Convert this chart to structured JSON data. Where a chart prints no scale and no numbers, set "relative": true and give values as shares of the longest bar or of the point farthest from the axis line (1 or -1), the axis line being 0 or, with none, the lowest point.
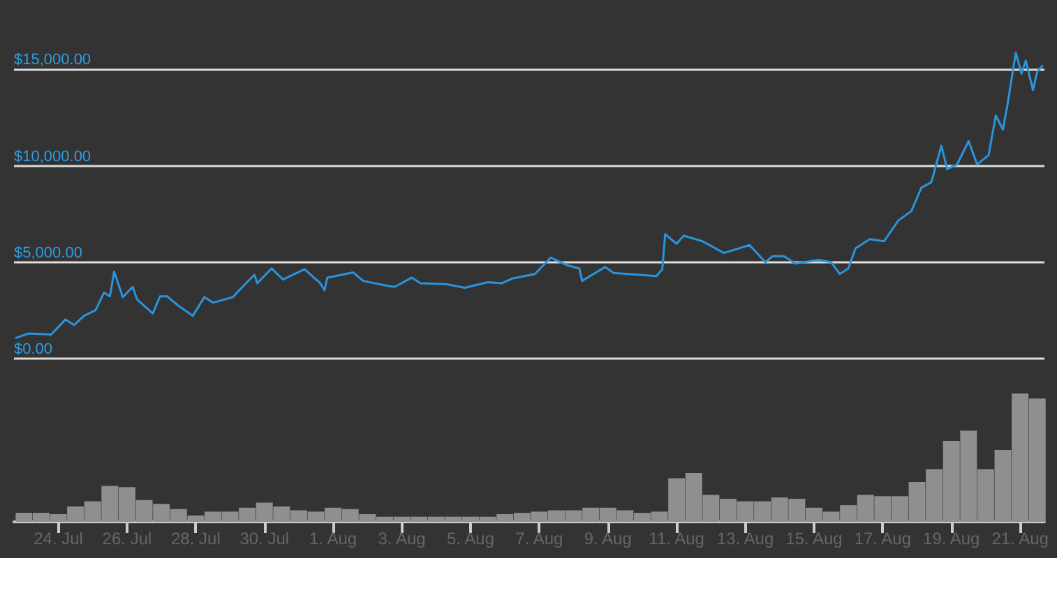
{
  "chart_data": [
    {
      "type": "line",
      "x": [
        "--07-22T18:00",
        "--07-23T03:00",
        "--07-23T19:00",
        "--07-24T05:00",
        "--07-24T11:00",
        "--07-24T18:00",
        "--07-25T02:00",
        "--07-25T08:00",
        "--07-25T12:00",
        "--07-25T15:00",
        "--07-25T21:00",
        "--07-26T04:00",
        "--07-26T07:00",
        "--07-26T18:00",
        "--07-26T23:00",
        "--07-27T04:00",
        "--07-27T12:00",
        "--07-27T22:00",
        "--07-28T06:00",
        "--07-28T12:00",
        "--07-29T02:00",
        "--07-29T08:00",
        "--07-29T17:00",
        "--07-29T19:00",
        "--07-30T05:00",
        "--07-30T13:00",
        "--07-31T04:00",
        "--07-31T15:00",
        "--07-31T18:00",
        "--07-31T20:00",
        "--08-01T14:00",
        "--08-01T21:00",
        "--08-02T13:00",
        "--08-02T19:00",
        "--08-03T07:00",
        "--08-03T13:00",
        "--08-04T07:00",
        "--08-04T20:00",
        "--08-05T12:00",
        "--08-05T22:00",
        "--08-06T05:00",
        "--08-06T21:00",
        "--08-07T08:00",
        "--08-07T20:00",
        "--08-08T04:00",
        "--08-08T06:00",
        "--08-08T22:00",
        "--08-09T04:00",
        "--08-09T21:00",
        "--08-10T10:00",
        "--08-10T14:00",
        "--08-10T16:00",
        "--08-11T00:00",
        "--08-11T05:00",
        "--08-11T18:00",
        "--08-12T09:00",
        "--08-13T03:00",
        "--08-13T14:00",
        "--08-13T19:00",
        "--08-14T03:00",
        "--08-14T11:00",
        "--08-15T03:00",
        "--08-15T12:00",
        "--08-15T18:00",
        "--08-16T00:00",
        "--08-16T05:00",
        "--08-16T15:00",
        "--08-17T01:00",
        "--08-17T11:00",
        "--08-17T20:00",
        "--08-18T03:00",
        "--08-18T10:00",
        "--08-18T17:00",
        "--08-18T21:00",
        "--08-19T04:00",
        "--08-19T12:00",
        "--08-19T18:00",
        "--08-20T02:00",
        "--08-20T07:00",
        "--08-20T12:00",
        "--08-20T15:00",
        "--08-20T21:00",
        "--08-21T01:00",
        "--08-21T04:00",
        "--08-21T09:00",
        "--08-21T12:00",
        "--08-21T16:00"
      ],
      "series": [
        {
          "color": "#2a93dc",
          "values": [
            1060,
            1300,
            1250,
            2030,
            1740,
            2220,
            2510,
            3430,
            3230,
            4510,
            3190,
            3720,
            3070,
            2340,
            3230,
            3230,
            2740,
            2220,
            3190,
            2900,
            3190,
            3670,
            4350,
            3910,
            4680,
            4100,
            4640,
            3910,
            3550,
            4200,
            4470,
            4030,
            3790,
            3720,
            4200,
            3910,
            3860,
            3670,
            3960,
            3910,
            4150,
            4390,
            5240,
            4830,
            4680,
            4030,
            4750,
            4440,
            4350,
            4280,
            4640,
            6450,
            5960,
            6380,
            6090,
            5480,
            5890,
            5000,
            5310,
            5310,
            4930,
            5120,
            5000,
            4390,
            4680,
            5720,
            6200,
            6090,
            7170,
            7650,
            8860,
            9150,
            11040,
            9830,
            10070,
            11280,
            10070,
            10550,
            12610,
            11880,
            13090,
            15870,
            14780,
            15460,
            13930,
            14900,
            15220
          ]
        }
      ],
      "xlim": [
        "--07-22T17:00",
        "--08-21T17:00"
      ],
      "ylim": [
        0,
        18600
      ],
      "yticks": [
        {
          "value": 0,
          "label": "$0.00"
        },
        {
          "value": 5000,
          "label": "$5,000.00"
        },
        {
          "value": 10000,
          "label": "$10,000.00"
        },
        {
          "value": 15000,
          "label": "$15,000.00"
        }
      ],
      "grid": "y",
      "marker": "none",
      "tick_labels": "y"
    },
    {
      "type": "bar",
      "relative": true,
      "x": [
        "--07-23T00:00",
        "--07-23T12:00",
        "--07-24T00:00",
        "--07-24T12:00",
        "--07-25T00:00",
        "--07-25T12:00",
        "--07-26T00:00",
        "--07-26T12:00",
        "--07-27T00:00",
        "--07-27T12:00",
        "--07-28T00:00",
        "--07-28T12:00",
        "--07-29T00:00",
        "--07-29T12:00",
        "--07-30T00:00",
        "--07-30T12:00",
        "--07-31T00:00",
        "--07-31T12:00",
        "--08-01T00:00",
        "--08-01T12:00",
        "--08-02T00:00",
        "--08-02T12:00",
        "--08-03T00:00",
        "--08-03T12:00",
        "--08-04T00:00",
        "--08-04T12:00",
        "--08-05T00:00",
        "--08-05T12:00",
        "--08-06T00:00",
        "--08-06T12:00",
        "--08-07T00:00",
        "--08-07T12:00",
        "--08-08T00:00",
        "--08-08T12:00",
        "--08-09T00:00",
        "--08-09T12:00",
        "--08-10T00:00",
        "--08-10T12:00",
        "--08-11T00:00",
        "--08-11T12:00",
        "--08-12T00:00",
        "--08-12T12:00",
        "--08-13T00:00",
        "--08-13T12:00",
        "--08-14T00:00",
        "--08-14T12:00",
        "--08-15T00:00",
        "--08-15T12:00",
        "--08-16T00:00",
        "--08-16T12:00",
        "--08-17T00:00",
        "--08-17T12:00",
        "--08-18T00:00",
        "--08-18T12:00",
        "--08-19T00:00",
        "--08-19T12:00",
        "--08-20T00:00",
        "--08-20T12:00",
        "--08-21T00:00",
        "--08-21T12:00"
      ],
      "series": [
        {
          "color": "#8f8f8f",
          "values": [
            0.07,
            0.07,
            0.06,
            0.12,
            0.16,
            0.28,
            0.27,
            0.17,
            0.14,
            0.1,
            0.05,
            0.08,
            0.08,
            0.11,
            0.15,
            0.12,
            0.09,
            0.08,
            0.11,
            0.1,
            0.06,
            0.04,
            0.04,
            0.04,
            0.04,
            0.04,
            0.04,
            0.04,
            0.06,
            0.07,
            0.08,
            0.09,
            0.09,
            0.11,
            0.11,
            0.09,
            0.07,
            0.08,
            0.34,
            0.38,
            0.21,
            0.18,
            0.16,
            0.16,
            0.19,
            0.18,
            0.11,
            0.08,
            0.13,
            0.21,
            0.2,
            0.2,
            0.31,
            0.41,
            0.63,
            0.71,
            0.41,
            0.56,
            1,
            0.96
          ]
        }
      ],
      "xlim": [
        "--07-22T17:00",
        "--08-21T17:00"
      ],
      "xticks": [
        {
          "value": "--07-24",
          "label": "24. Jul"
        },
        {
          "value": "--07-26",
          "label": "26. Jul"
        },
        {
          "value": "--07-28",
          "label": "28. Jul"
        },
        {
          "value": "--07-30",
          "label": "30. Jul"
        },
        {
          "value": "--08-01",
          "label": "1. Aug"
        },
        {
          "value": "--08-03",
          "label": "3. Aug"
        },
        {
          "value": "--08-05",
          "label": "5. Aug"
        },
        {
          "value": "--08-07",
          "label": "7. Aug"
        },
        {
          "value": "--08-09",
          "label": "9. Aug"
        },
        {
          "value": "--08-11",
          "label": "11. Aug"
        },
        {
          "value": "--08-13",
          "label": "13. Aug"
        },
        {
          "value": "--08-15",
          "label": "15. Aug"
        },
        {
          "value": "--08-17",
          "label": "17. Aug"
        },
        {
          "value": "--08-19",
          "label": "19. Aug"
        },
        {
          "value": "--08-21",
          "label": "21. Aug"
        }
      ],
      "tick_labels": "x"
    }
  ]
}
